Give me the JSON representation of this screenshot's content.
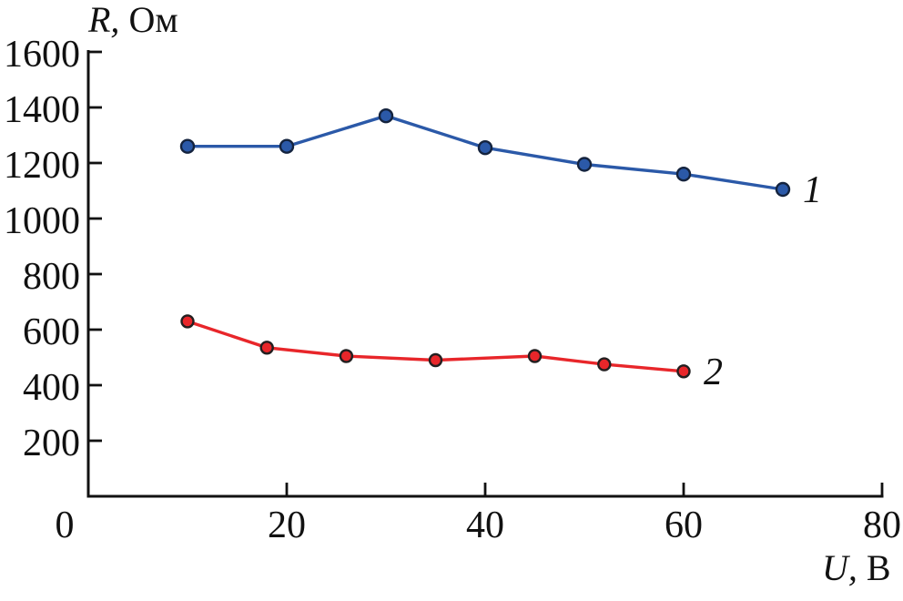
{
  "figure": {
    "background": "#ffffff"
  },
  "chart_data": {
    "type": "line",
    "title": "",
    "xlabel": "U, В",
    "ylabel": "R, Ом",
    "xlim": [
      0,
      80
    ],
    "ylim": [
      0,
      1600
    ],
    "xticks": [
      0,
      20,
      40,
      60,
      80
    ],
    "yticks": [
      200,
      400,
      600,
      800,
      1000,
      1200,
      1400,
      1600
    ],
    "grid": false,
    "legend": "inline labels at right end of each line",
    "axis_color": "#111111",
    "series": [
      {
        "name": "1",
        "color": "#2b59a8",
        "marker": "circle",
        "marker_edge": "#14233e",
        "marker_radius": 7,
        "x": [
          10,
          20,
          30,
          40,
          50,
          60,
          70
        ],
        "y": [
          1260,
          1260,
          1370,
          1255,
          1195,
          1160,
          1105
        ]
      },
      {
        "name": "2",
        "color": "#e8262a",
        "marker": "circle",
        "marker_edge": "#231f20",
        "marker_radius": 6.5,
        "x": [
          10,
          18,
          26,
          35,
          45,
          52,
          60
        ],
        "y": [
          630,
          535,
          505,
          490,
          505,
          475,
          450
        ]
      }
    ]
  }
}
